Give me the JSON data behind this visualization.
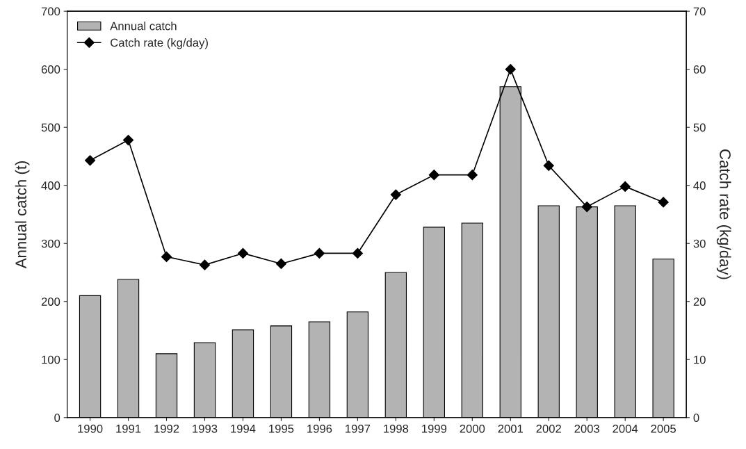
{
  "chart_data": {
    "type": "bar",
    "categories": [
      "1990",
      "1991",
      "1992",
      "1993",
      "1994",
      "1995",
      "1996",
      "1997",
      "1998",
      "1999",
      "2000",
      "2001",
      "2002",
      "2003",
      "2004",
      "2005"
    ],
    "series": [
      {
        "name": "Annual catch",
        "color": "#b3b3b3",
        "values": [
          210,
          238,
          110,
          129,
          151,
          158,
          165,
          182,
          250,
          328,
          335,
          570,
          365,
          363,
          365,
          273
        ]
      },
      {
        "name": "Catch rate (kg/day)",
        "type": "line",
        "axis": "y2",
        "color": "#000000",
        "marker": "diamond",
        "values": [
          44.3,
          47.8,
          27.7,
          26.3,
          28.3,
          26.5,
          28.3,
          28.3,
          38.4,
          41.8,
          41.8,
          60,
          43.4,
          36.3,
          39.8,
          37.1
        ]
      }
    ],
    "ylabel": "Annual catch (t)",
    "y2label": "Catch rate (kg/day)",
    "ylim": [
      0,
      700
    ],
    "yticks": [
      0,
      100,
      200,
      300,
      400,
      500,
      600,
      700
    ],
    "y2lim": [
      0,
      70
    ],
    "y2ticks": [
      0,
      10,
      20,
      30,
      40,
      50,
      60,
      70
    ],
    "legend": "top left",
    "grid": false
  }
}
